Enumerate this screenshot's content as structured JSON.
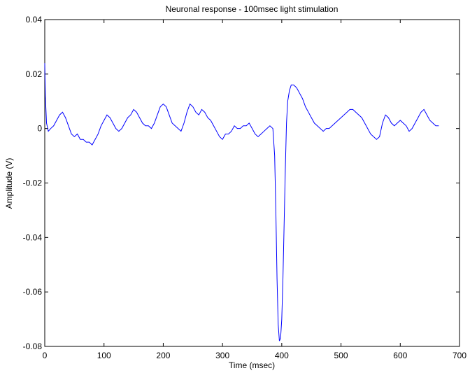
{
  "chart_data": {
    "type": "line",
    "title": "Neuronal response - 100msec light stimulation",
    "xlabel": "Time (msec)",
    "ylabel": "Amplitude (V)",
    "xlim": [
      0,
      700
    ],
    "ylim": [
      -0.08,
      0.04
    ],
    "xticks": [
      0,
      100,
      200,
      300,
      400,
      500,
      600,
      700
    ],
    "yticks": [
      -0.08,
      -0.06,
      -0.04,
      -0.02,
      0,
      0.02,
      0.04
    ],
    "xtick_labels": [
      "0",
      "100",
      "200",
      "300",
      "400",
      "500",
      "600",
      "700"
    ],
    "ytick_labels": [
      "-0.08",
      "-0.06",
      "-0.04",
      "-0.02",
      "0",
      "0.02",
      "0.04"
    ],
    "grid": false,
    "line_color": "#0000ff",
    "series": [
      {
        "x": [
          0,
          1,
          3,
          6,
          10,
          15,
          20,
          25,
          30,
          35,
          40,
          45,
          50,
          55,
          60,
          65,
          70,
          75,
          80,
          85,
          90,
          95,
          100,
          105,
          110,
          115,
          120,
          125,
          130,
          135,
          140,
          145,
          150,
          155,
          160,
          165,
          170,
          175,
          180,
          185,
          190,
          195,
          200,
          205,
          210,
          215,
          220,
          225,
          230,
          235,
          240,
          245,
          250,
          255,
          260,
          265,
          270,
          275,
          280,
          285,
          290,
          295,
          300,
          305,
          310,
          315,
          320,
          325,
          330,
          335,
          340,
          345,
          350,
          355,
          360,
          365,
          370,
          375,
          380,
          385,
          388,
          390,
          392,
          394,
          396,
          398,
          400,
          402,
          404,
          406,
          408,
          410,
          413,
          416,
          420,
          425,
          430,
          435,
          440,
          445,
          450,
          455,
          460,
          465,
          470,
          475,
          480,
          485,
          490,
          495,
          500,
          505,
          510,
          515,
          520,
          525,
          530,
          535,
          540,
          545,
          550,
          555,
          560,
          565,
          570,
          575,
          580,
          585,
          590,
          595,
          600,
          605,
          610,
          615,
          620,
          625,
          630,
          635,
          640,
          645,
          650,
          655,
          660,
          665
        ],
        "y": [
          0.024,
          0.012,
          0.002,
          -0.001,
          0.0,
          0.001,
          0.003,
          0.005,
          0.006,
          0.004,
          0.001,
          -0.002,
          -0.003,
          -0.002,
          -0.004,
          -0.004,
          -0.005,
          -0.005,
          -0.006,
          -0.004,
          -0.002,
          0.001,
          0.003,
          0.005,
          0.004,
          0.002,
          0.0,
          -0.001,
          0.0,
          0.002,
          0.004,
          0.005,
          0.007,
          0.006,
          0.004,
          0.002,
          0.001,
          0.001,
          0.0,
          0.002,
          0.005,
          0.008,
          0.009,
          0.008,
          0.005,
          0.002,
          0.001,
          0.0,
          -0.001,
          0.002,
          0.006,
          0.009,
          0.008,
          0.006,
          0.005,
          0.007,
          0.006,
          0.004,
          0.003,
          0.001,
          -0.001,
          -0.003,
          -0.004,
          -0.002,
          -0.002,
          -0.001,
          0.001,
          0.0,
          0.0,
          0.001,
          0.001,
          0.002,
          0.0,
          -0.002,
          -0.003,
          -0.002,
          -0.001,
          0.0,
          0.001,
          0.0,
          -0.01,
          -0.03,
          -0.055,
          -0.072,
          -0.078,
          -0.077,
          -0.07,
          -0.055,
          -0.035,
          -0.015,
          0.002,
          0.01,
          0.014,
          0.016,
          0.016,
          0.015,
          0.013,
          0.011,
          0.008,
          0.006,
          0.004,
          0.002,
          0.001,
          0.0,
          -0.001,
          0.0,
          0.0,
          0.001,
          0.002,
          0.003,
          0.004,
          0.005,
          0.006,
          0.007,
          0.007,
          0.006,
          0.005,
          0.004,
          0.002,
          0.0,
          -0.002,
          -0.003,
          -0.004,
          -0.003,
          0.002,
          0.005,
          0.004,
          0.002,
          0.001,
          0.002,
          0.003,
          0.002,
          0.001,
          -0.001,
          0.0,
          0.002,
          0.004,
          0.006,
          0.007,
          0.005,
          0.003,
          0.002,
          0.001,
          0.001
        ]
      }
    ]
  }
}
